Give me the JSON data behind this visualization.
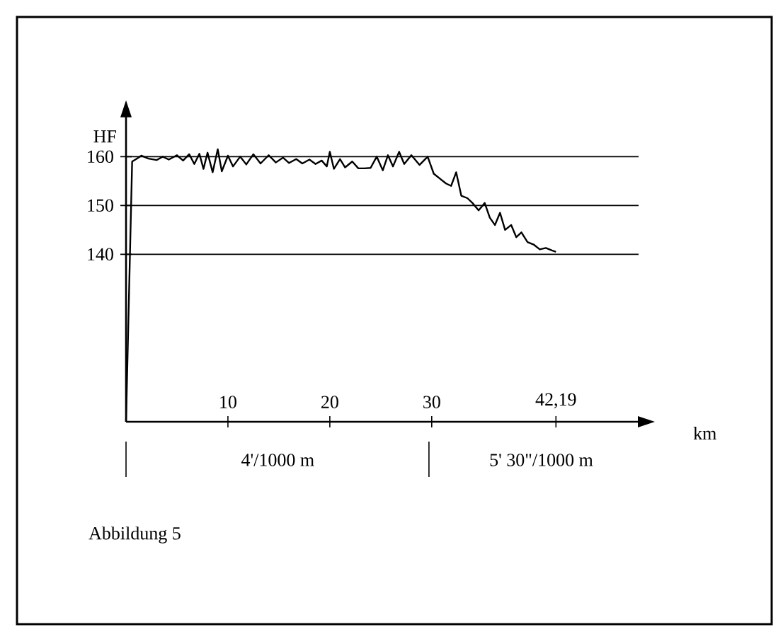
{
  "chart_data": {
    "type": "line",
    "xlabel": "km",
    "ylabel": "HF",
    "xlim": [
      0,
      50.3
    ],
    "ylim": [
      105.7,
      168.2
    ],
    "xticks": [
      10,
      20,
      30,
      {
        "value": 42.19,
        "label": "42,19"
      }
    ],
    "yticks": [
      140,
      150,
      160
    ],
    "grid": "y",
    "color": "#000000",
    "x": [
      0,
      0.6,
      1.0,
      1.5,
      2.2,
      3.0,
      3.6,
      4.2,
      5.0,
      5.6,
      6.2,
      6.7,
      7.2,
      7.6,
      8.0,
      8.5,
      9.0,
      9.4,
      10.0,
      10.5,
      11.2,
      11.8,
      12.5,
      13.2,
      14.0,
      14.7,
      15.4,
      16.0,
      16.7,
      17.3,
      18.0,
      18.6,
      19.2,
      19.7,
      20.0,
      20.4,
      21.0,
      21.5,
      22.2,
      22.8,
      23.4,
      24.0,
      24.6,
      25.2,
      25.7,
      26.2,
      26.8,
      27.3,
      28.0,
      28.8,
      29.6,
      30.2,
      30.8,
      31.4,
      31.9,
      32.4,
      32.9,
      33.5,
      34.0,
      34.6,
      35.2,
      35.7,
      36.2,
      36.7,
      37.2,
      37.8,
      38.3,
      38.8,
      39.4,
      40.0,
      40.6,
      41.2,
      41.8,
      42.19
    ],
    "values": [
      105.7,
      159.0,
      159.5,
      160.2,
      159.6,
      159.3,
      160.0,
      159.4,
      160.3,
      159.2,
      160.5,
      158.5,
      160.6,
      157.5,
      160.8,
      156.8,
      161.5,
      157.0,
      160.2,
      158.0,
      160.0,
      158.4,
      160.5,
      158.6,
      160.3,
      158.8,
      159.8,
      158.7,
      159.5,
      158.6,
      159.4,
      158.5,
      159.2,
      158.0,
      161.0,
      157.5,
      159.5,
      157.8,
      159.0,
      157.6,
      157.6,
      157.7,
      160.0,
      157.2,
      160.3,
      158.0,
      161.0,
      158.5,
      160.3,
      158.3,
      160.0,
      156.5,
      155.5,
      154.5,
      154.0,
      156.8,
      152.0,
      151.5,
      150.5,
      149.0,
      150.5,
      147.5,
      146.0,
      148.5,
      145.0,
      146.0,
      143.5,
      144.5,
      142.5,
      142.0,
      141.0,
      141.3,
      140.8,
      140.5
    ],
    "annotations": [
      "4'/1000 m",
      "5' 30\"/1000 m",
      "Abbildung 5"
    ]
  }
}
